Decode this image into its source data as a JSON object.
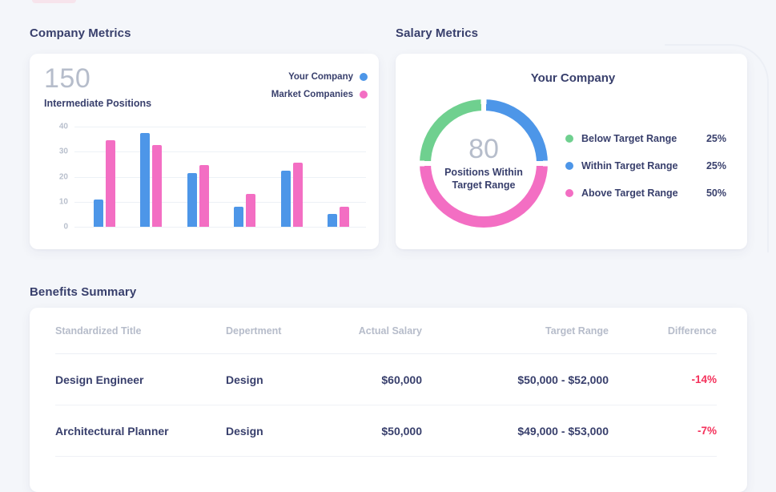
{
  "page": {
    "background": "#F4F6FA",
    "accent_sliver_color": "#F7E4EC"
  },
  "colors": {
    "navy_text": "#383F6C",
    "muted_gray": "#B6BDCB",
    "blue": "#4D96E8",
    "pink": "#F36EC3",
    "green": "#6FD08F",
    "red": "#F4315B"
  },
  "company_metrics": {
    "section_title": "Company Metrics"
  },
  "salary_metrics": {
    "section_title": "Salary Metrics",
    "card_title": "Your Company"
  },
  "chart_data": [
    {
      "type": "bar",
      "stat_value": "150",
      "stat_label": "Intermediate Positions",
      "series": [
        {
          "name": "Your Company",
          "color": "#4D96E8",
          "values": [
            11,
            37.5,
            21.5,
            8,
            22.5,
            5
          ]
        },
        {
          "name": "Market Companies",
          "color": "#F36EC3",
          "values": [
            34.5,
            32.5,
            24.5,
            13,
            25.5,
            8
          ]
        }
      ],
      "ylim": [
        0,
        40
      ],
      "yticks": [
        40,
        30,
        20,
        10,
        0
      ],
      "grid": true,
      "legend_position": "top-right"
    },
    {
      "type": "pie",
      "title": "Your Company",
      "center_value": "80",
      "center_label": "Positions Within Target Range",
      "slices": [
        {
          "label": "Below Target Range",
          "percent": 25,
          "color": "#6FD08F"
        },
        {
          "label": "Within Target Range",
          "percent": 25,
          "color": "#4D96E8"
        },
        {
          "label": "Above Target Range",
          "percent": 50,
          "color": "#F36EC3"
        }
      ],
      "legend_position": "right"
    }
  ],
  "benefits_summary": {
    "section_title": "Benefits Summary",
    "table": {
      "columns": [
        "Standardized Title",
        "Depertment",
        "Actual Salary",
        "Target Range",
        "Difference"
      ],
      "rows": [
        {
          "title": "Design Engineer",
          "department": "Design",
          "actual_salary": "$60,000",
          "target_range": "$50,000 - $52,000",
          "difference": "-14%"
        },
        {
          "title": "Architectural Planner",
          "department": "Design",
          "actual_salary": "$50,000",
          "target_range": "$49,000 - $53,000",
          "difference": "-7%"
        }
      ],
      "difference_color": "#F4315B"
    }
  }
}
